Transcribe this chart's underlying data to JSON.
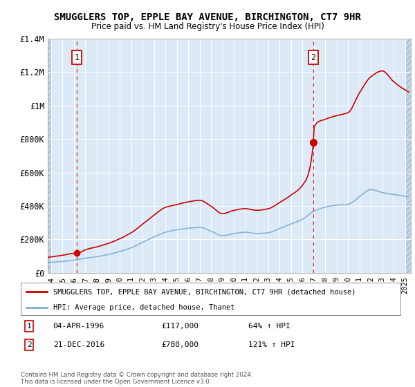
{
  "title": "SMUGGLERS TOP, EPPLE BAY AVENUE, BIRCHINGTON, CT7 9HR",
  "subtitle": "Price paid vs. HM Land Registry's House Price Index (HPI)",
  "ylim": [
    0,
    1400000
  ],
  "xlim_start": 1993.7,
  "xlim_end": 2025.5,
  "yticks": [
    0,
    200000,
    400000,
    600000,
    800000,
    1000000,
    1200000,
    1400000
  ],
  "ytick_labels": [
    "£0",
    "£200K",
    "£400K",
    "£600K",
    "£800K",
    "£1M",
    "£1.2M",
    "£1.4M"
  ],
  "xticks": [
    1994,
    1995,
    1996,
    1997,
    1998,
    1999,
    2000,
    2001,
    2002,
    2003,
    2004,
    2005,
    2006,
    2007,
    2008,
    2009,
    2010,
    2011,
    2012,
    2013,
    2014,
    2015,
    2016,
    2017,
    2018,
    2019,
    2020,
    2021,
    2022,
    2023,
    2024,
    2025
  ],
  "bg_color": "#dce9f7",
  "hatch_color": "#c4d4e8",
  "grid_color": "#ffffff",
  "red_line_color": "#cc0000",
  "blue_line_color": "#7aafd4",
  "purchase1_x": 1996.25,
  "purchase1_y": 117000,
  "purchase2_x": 2016.97,
  "purchase2_y": 780000,
  "legend_red_label": "SMUGGLERS TOP, EPPLE BAY AVENUE, BIRCHINGTON, CT7 9HR (detached house)",
  "legend_blue_label": "HPI: Average price, detached house, Thanet",
  "note1_date": "04-APR-1996",
  "note1_price": "£117,000",
  "note1_hpi": "64% ↑ HPI",
  "note2_date": "21-DEC-2016",
  "note2_price": "£780,000",
  "note2_hpi": "121% ↑ HPI",
  "footer": "Contains HM Land Registry data © Crown copyright and database right 2024.\nThis data is licensed under the Open Government Licence v3.0."
}
